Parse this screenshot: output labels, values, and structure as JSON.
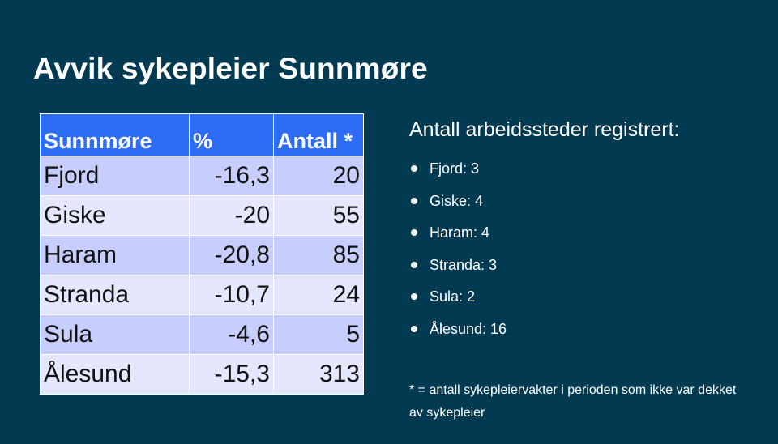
{
  "slide": {
    "title": "Avvik sykepleier Sunnmøre",
    "table": {
      "headers": [
        "Sunnmøre",
        "%",
        "Antall *"
      ],
      "rows": [
        [
          "Fjord",
          "-16,3",
          "20"
        ],
        [
          "Giske",
          "-20",
          "55"
        ],
        [
          "Haram",
          "-20,8",
          "85"
        ],
        [
          "Stranda",
          "-10,7",
          "24"
        ],
        [
          "Sula",
          "-4,6",
          "5"
        ],
        [
          "Ålesund",
          "-15,3",
          "313"
        ]
      ]
    },
    "side_heading": "Antall arbeidssteder registrert:",
    "sites": [
      "Fjord: 3",
      "Giske: 4",
      "Haram: 4",
      "Stranda: 3",
      "Sula: 2",
      "Ålesund: 16"
    ],
    "footnote": "* = antall sykepleiervakter i perioden som ikke var dekket av sykepleier"
  },
  "colors": {
    "background": "#023a52",
    "table_header": "#2d6cf5",
    "row_odd": "#c7cdfc",
    "row_even": "#e4e7fd"
  }
}
